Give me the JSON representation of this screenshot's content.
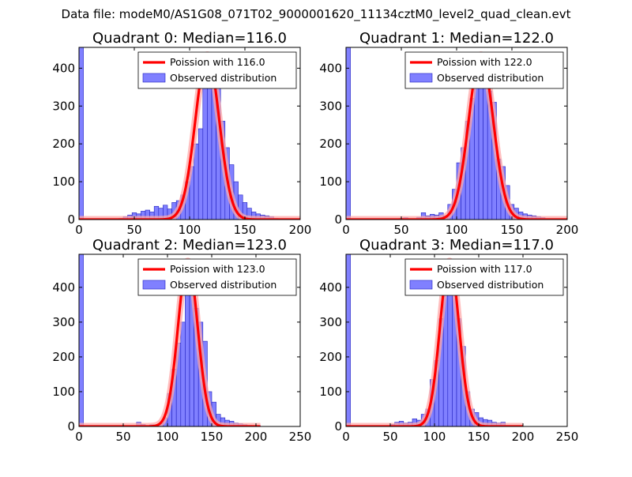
{
  "figure": {
    "suptitle": "Data file: modeM0/AS1G08_071T02_9000001620_11134cztM0_level2_quad_clean.evt",
    "colors": {
      "hist_fill": "#8080ff",
      "hist_edge": "#2020c0",
      "poisson": "#ff0000",
      "poisson_glow": "#ffaaaa",
      "axis": "#000000"
    }
  },
  "chart_data": [
    {
      "type": "bar",
      "title": "Quadrant 0: Median=116.0",
      "xlim": [
        0,
        200
      ],
      "ylim": [
        0,
        455
      ],
      "xticks": [
        0,
        50,
        100,
        150,
        200
      ],
      "yticks": [
        0,
        100,
        200,
        300,
        400
      ],
      "legend": {
        "placement": "top-right",
        "line_label": "Poission with 116.0",
        "bar_label": "Observed distribution"
      },
      "bin_width": 4,
      "histogram": [
        [
          0,
          460
        ],
        [
          36,
          3
        ],
        [
          40,
          8
        ],
        [
          44,
          12
        ],
        [
          48,
          18
        ],
        [
          52,
          15
        ],
        [
          56,
          22
        ],
        [
          60,
          25
        ],
        [
          64,
          20
        ],
        [
          68,
          35
        ],
        [
          72,
          30
        ],
        [
          76,
          38
        ],
        [
          80,
          28
        ],
        [
          84,
          45
        ],
        [
          88,
          50
        ],
        [
          92,
          65
        ],
        [
          96,
          100
        ],
        [
          100,
          140
        ],
        [
          104,
          200
        ],
        [
          108,
          240
        ],
        [
          112,
          370
        ],
        [
          116,
          420
        ],
        [
          120,
          380
        ],
        [
          124,
          360
        ],
        [
          128,
          260
        ],
        [
          132,
          190
        ],
        [
          136,
          145
        ],
        [
          140,
          100
        ],
        [
          144,
          65
        ],
        [
          148,
          45
        ],
        [
          152,
          30
        ],
        [
          156,
          20
        ],
        [
          160,
          15
        ],
        [
          164,
          12
        ],
        [
          168,
          10
        ],
        [
          172,
          8
        ],
        [
          176,
          3
        ]
      ],
      "poisson": {
        "mu": 116.0,
        "peak": 435,
        "x_range": [
          0,
          200
        ]
      }
    },
    {
      "type": "bar",
      "title": "Quadrant 1: Median=122.0",
      "xlim": [
        0,
        200
      ],
      "ylim": [
        0,
        455
      ],
      "xticks": [
        0,
        50,
        100,
        150,
        200
      ],
      "yticks": [
        0,
        100,
        200,
        300,
        400
      ],
      "legend": {
        "placement": "top-right",
        "line_label": "Poission with 122.0",
        "bar_label": "Observed distribution"
      },
      "bin_width": 4,
      "histogram": [
        [
          0,
          460
        ],
        [
          48,
          3
        ],
        [
          52,
          5
        ],
        [
          64,
          6
        ],
        [
          68,
          18
        ],
        [
          72,
          10
        ],
        [
          76,
          14
        ],
        [
          80,
          12
        ],
        [
          84,
          18
        ],
        [
          88,
          10
        ],
        [
          92,
          40
        ],
        [
          96,
          80
        ],
        [
          100,
          150
        ],
        [
          104,
          190
        ],
        [
          108,
          260
        ],
        [
          112,
          320
        ],
        [
          116,
          370
        ],
        [
          120,
          430
        ],
        [
          124,
          440
        ],
        [
          128,
          340
        ],
        [
          132,
          310
        ],
        [
          136,
          160
        ],
        [
          140,
          140
        ],
        [
          144,
          90
        ],
        [
          148,
          40
        ],
        [
          152,
          30
        ],
        [
          156,
          20
        ],
        [
          160,
          15
        ],
        [
          164,
          12
        ],
        [
          168,
          10
        ],
        [
          172,
          8
        ],
        [
          176,
          5
        ]
      ],
      "poisson": {
        "mu": 122.0,
        "peak": 435,
        "x_range": [
          0,
          200
        ]
      }
    },
    {
      "type": "bar",
      "title": "Quadrant 2: Median=123.0",
      "xlim": [
        0,
        250
      ],
      "ylim": [
        0,
        495
      ],
      "xticks": [
        0,
        50,
        100,
        150,
        200,
        250
      ],
      "yticks": [
        0,
        100,
        200,
        300,
        400
      ],
      "legend": {
        "placement": "top-right",
        "line_label": "Poission with 123.0",
        "bar_label": "Observed distribution"
      },
      "bin_width": 5,
      "histogram": [
        [
          0,
          500
        ],
        [
          65,
          12
        ],
        [
          70,
          6
        ],
        [
          80,
          5
        ],
        [
          85,
          4
        ],
        [
          90,
          8
        ],
        [
          95,
          25
        ],
        [
          100,
          95
        ],
        [
          105,
          165
        ],
        [
          110,
          240
        ],
        [
          115,
          300
        ],
        [
          120,
          420
        ],
        [
          125,
          465
        ],
        [
          130,
          340
        ],
        [
          135,
          300
        ],
        [
          140,
          245
        ],
        [
          145,
          100
        ],
        [
          150,
          70
        ],
        [
          155,
          35
        ],
        [
          160,
          25
        ],
        [
          165,
          18
        ],
        [
          170,
          15
        ],
        [
          175,
          10
        ],
        [
          180,
          8
        ],
        [
          185,
          5
        ],
        [
          190,
          3
        ],
        [
          200,
          2
        ]
      ],
      "poisson": {
        "mu": 123.0,
        "peak": 475,
        "x_range": [
          0,
          205
        ]
      }
    },
    {
      "type": "bar",
      "title": "Quadrant 3: Median=117.0",
      "xlim": [
        0,
        250
      ],
      "ylim": [
        0,
        495
      ],
      "xticks": [
        0,
        50,
        100,
        150,
        200,
        250
      ],
      "yticks": [
        0,
        100,
        200,
        300,
        400
      ],
      "legend": {
        "placement": "top-right",
        "line_label": "Poission with 117.0",
        "bar_label": "Observed distribution"
      },
      "bin_width": 5,
      "histogram": [
        [
          0,
          500
        ],
        [
          50,
          6
        ],
        [
          55,
          12
        ],
        [
          60,
          15
        ],
        [
          65,
          10
        ],
        [
          70,
          12
        ],
        [
          75,
          22
        ],
        [
          80,
          18
        ],
        [
          85,
          35
        ],
        [
          90,
          50
        ],
        [
          95,
          135
        ],
        [
          100,
          190
        ],
        [
          105,
          310
        ],
        [
          110,
          380
        ],
        [
          115,
          465
        ],
        [
          120,
          420
        ],
        [
          125,
          310
        ],
        [
          130,
          230
        ],
        [
          135,
          100
        ],
        [
          140,
          50
        ],
        [
          145,
          40
        ],
        [
          150,
          25
        ],
        [
          155,
          20
        ],
        [
          160,
          18
        ],
        [
          165,
          12
        ],
        [
          170,
          10
        ],
        [
          175,
          12
        ],
        [
          180,
          3
        ]
      ],
      "poisson": {
        "mu": 117.0,
        "peak": 475,
        "x_range": [
          0,
          200
        ]
      }
    }
  ]
}
